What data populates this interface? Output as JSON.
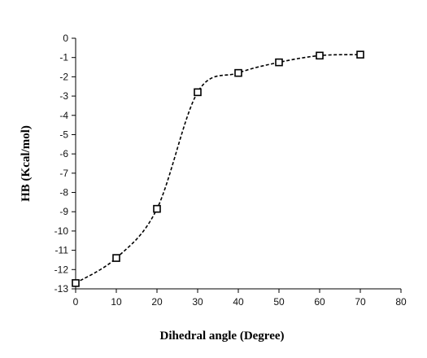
{
  "chart_data": {
    "type": "line",
    "title": "",
    "xlabel": "Dihedral angle  (Degree)",
    "ylabel": "HB (Kcal/mol)",
    "xlim": [
      0,
      80
    ],
    "ylim": [
      -13,
      0
    ],
    "xticks": [
      0,
      10,
      20,
      30,
      40,
      50,
      60,
      70,
      80
    ],
    "yticks": [
      0,
      -1,
      -2,
      -3,
      -4,
      -5,
      -6,
      -7,
      -8,
      -9,
      -10,
      -11,
      -12,
      -13
    ],
    "grid": false,
    "legend": "none",
    "marker": "open-square",
    "line_style": "dashed-smooth",
    "colors": {
      "line": "#000000",
      "marker_fill": "#ffffff",
      "axis": "#000000"
    },
    "series": [
      {
        "x": [
          0,
          10,
          20,
          30,
          40,
          50,
          60,
          70
        ],
        "y": [
          -12.7,
          -11.4,
          -8.85,
          -2.8,
          -1.8,
          -1.25,
          -0.9,
          -0.85
        ]
      }
    ]
  }
}
